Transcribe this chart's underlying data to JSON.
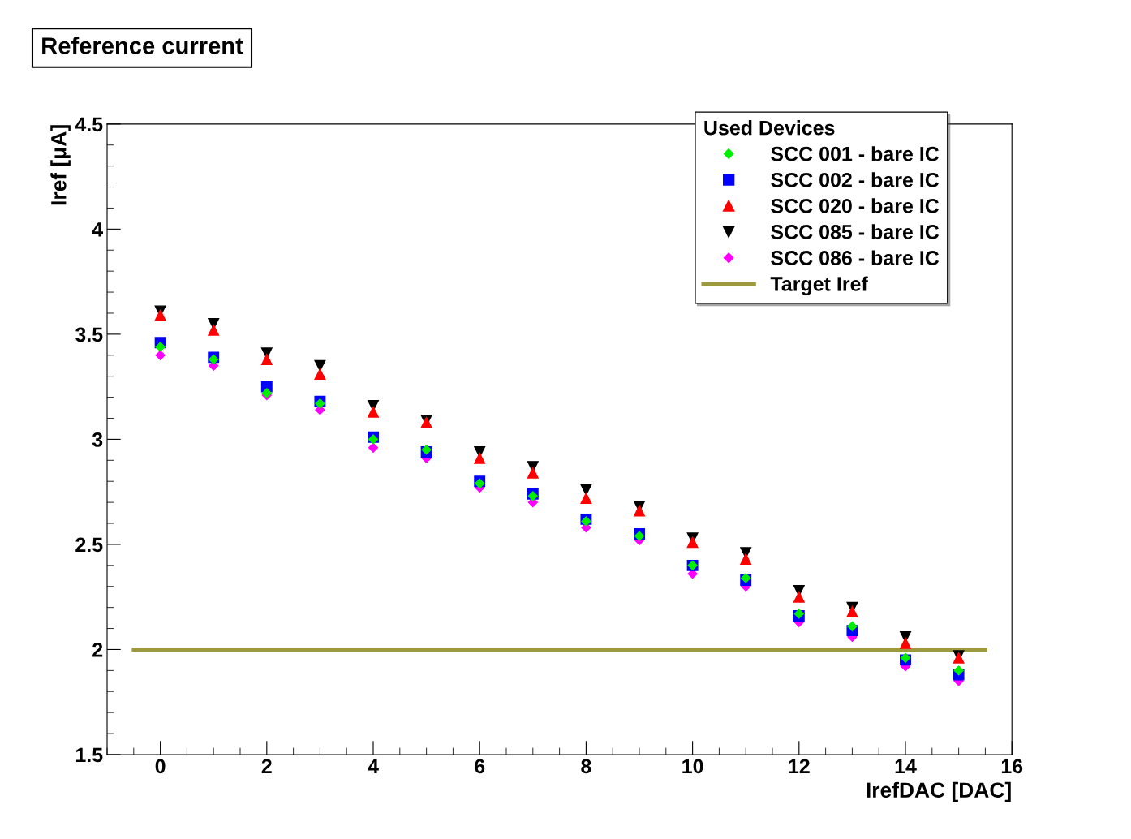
{
  "chart_data": {
    "type": "scatter",
    "title": "Reference current",
    "xlabel": "IrefDAC [DAC]",
    "ylabel": "Iref [μA]",
    "legend_title": "Used Devices",
    "x": [
      0,
      1,
      2,
      3,
      4,
      5,
      6,
      7,
      8,
      9,
      10,
      11,
      12,
      13,
      14,
      15
    ],
    "series": [
      {
        "name": "SCC 001 - bare IC",
        "color": "#00ee00",
        "marker": "diamond",
        "values": [
          3.44,
          3.38,
          3.22,
          3.17,
          3.0,
          2.95,
          2.79,
          2.73,
          2.61,
          2.54,
          2.4,
          2.34,
          2.17,
          2.11,
          1.96,
          1.9
        ]
      },
      {
        "name": "SCC 002 - bare IC",
        "color": "#0000ff",
        "marker": "square",
        "values": [
          3.46,
          3.39,
          3.25,
          3.18,
          3.01,
          2.94,
          2.8,
          2.74,
          2.62,
          2.55,
          2.4,
          2.33,
          2.16,
          2.09,
          1.95,
          1.88
        ]
      },
      {
        "name": "SCC 020 - bare IC",
        "color": "#ff0000",
        "marker": "triangle",
        "values": [
          3.59,
          3.52,
          3.38,
          3.31,
          3.13,
          3.08,
          2.91,
          2.84,
          2.72,
          2.66,
          2.51,
          2.43,
          2.25,
          2.18,
          2.03,
          1.96
        ]
      },
      {
        "name": "SCC 085 - bare IC",
        "color": "#000000",
        "marker": "triangle_down",
        "values": [
          3.61,
          3.55,
          3.41,
          3.35,
          3.16,
          3.09,
          2.94,
          2.87,
          2.76,
          2.68,
          2.53,
          2.46,
          2.28,
          2.2,
          2.06,
          1.97
        ]
      },
      {
        "name": "SCC 086 - bare IC",
        "color": "#ff00ff",
        "marker": "diamond",
        "values": [
          3.4,
          3.35,
          3.21,
          3.14,
          2.96,
          2.91,
          2.77,
          2.7,
          2.58,
          2.52,
          2.36,
          2.3,
          2.13,
          2.06,
          1.92,
          1.85
        ]
      },
      {
        "name": "Target Iref",
        "type": "line",
        "color": "#9c9a3c",
        "marker": "none",
        "x": [
          -0.5,
          15.5
        ],
        "values": [
          2,
          2
        ]
      }
    ],
    "xlim": [
      -1,
      16
    ],
    "xticks": [
      0,
      2,
      4,
      6,
      8,
      10,
      12,
      14,
      16
    ],
    "ylim": [
      1.5,
      4.5
    ],
    "yticks": [
      1.5,
      2,
      2.5,
      3,
      3.5,
      4,
      4.5
    ],
    "grid": false,
    "legend": "top right"
  }
}
